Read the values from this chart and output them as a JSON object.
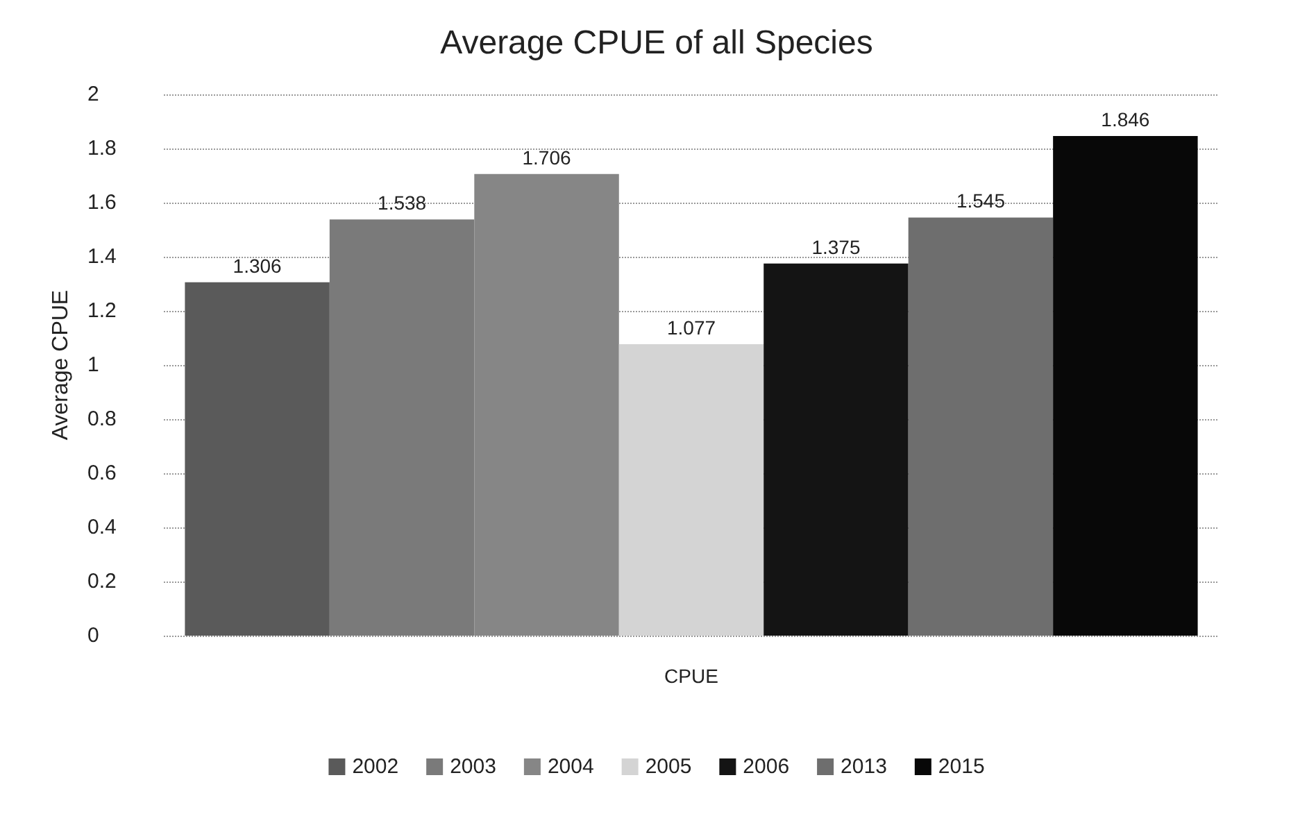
{
  "chart_data": {
    "type": "bar",
    "title": "Average CPUE of all Species",
    "ylabel": "Average CPUE",
    "categories": [
      "CPUE"
    ],
    "series": [
      {
        "name": "2002",
        "color": "#5a5a5a",
        "values": [
          1.306
        ]
      },
      {
        "name": "2003",
        "color": "#7a7a7a",
        "values": [
          1.538
        ]
      },
      {
        "name": "2004",
        "color": "#868686",
        "values": [
          1.706
        ]
      },
      {
        "name": "2005",
        "color": "#d4d4d4",
        "values": [
          1.077
        ]
      },
      {
        "name": "2006",
        "color": "#141414",
        "values": [
          1.375
        ]
      },
      {
        "name": "2013",
        "color": "#6e6e6e",
        "values": [
          1.545
        ]
      },
      {
        "name": "2015",
        "color": "#080808",
        "values": [
          1.846
        ]
      }
    ],
    "ylim": [
      0,
      2
    ],
    "yticks": [
      0,
      0.2,
      0.4,
      0.6,
      0.8,
      1,
      1.2,
      1.4,
      1.6,
      1.8,
      2
    ],
    "grid": "y",
    "legend": "bottom",
    "data_labels": true
  }
}
